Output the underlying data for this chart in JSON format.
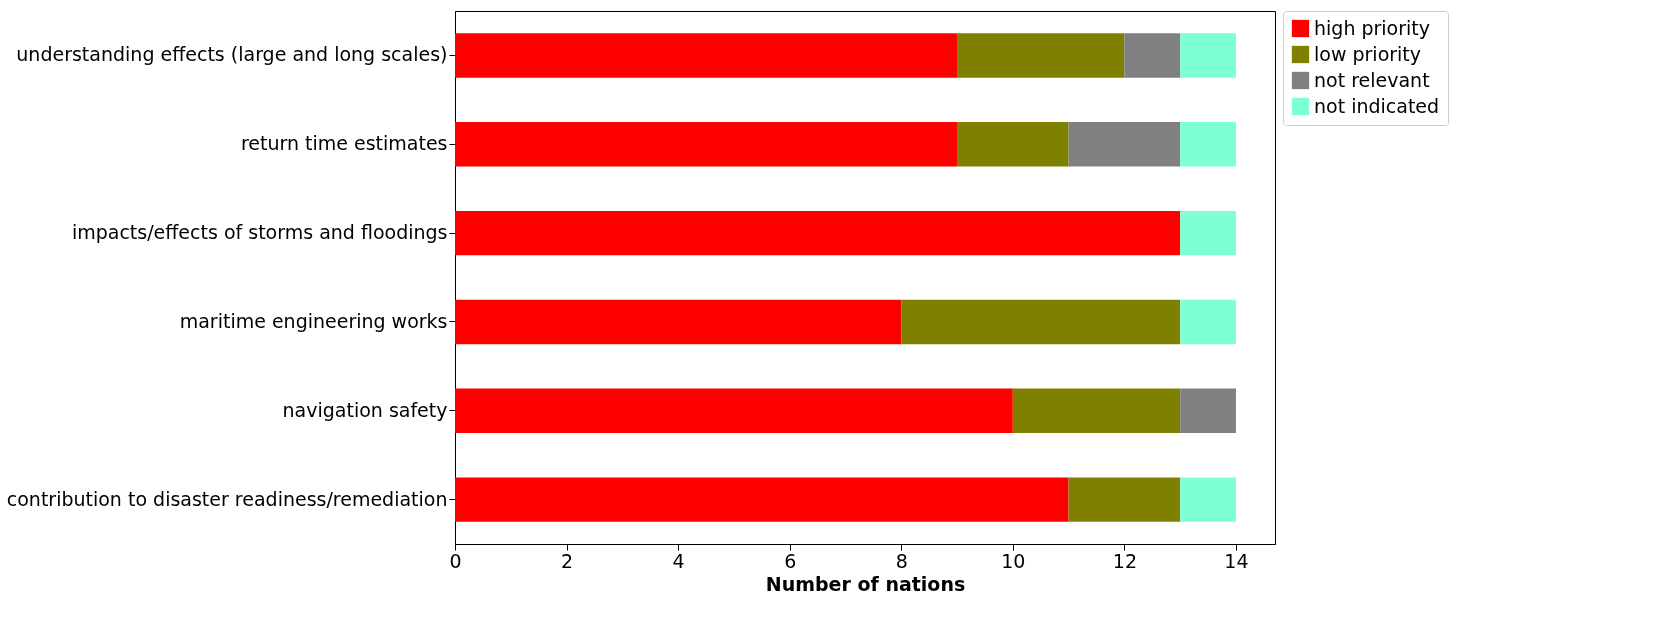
{
  "chart_data": {
    "type": "bar",
    "orientation": "horizontal",
    "stacked": true,
    "xlabel": "Number of nations",
    "categories": [
      "understanding effects (large and long scales)",
      "return time estimates",
      "impacts/effects of storms and floodings",
      "maritime engineering works",
      "navigation safety",
      "contribution to disaster readiness/remediation"
    ],
    "series": [
      {
        "name": "high priority",
        "color": "#ff0000",
        "values": [
          9,
          9,
          13,
          8,
          10,
          11
        ]
      },
      {
        "name": "low priority",
        "color": "#808000",
        "values": [
          3,
          2,
          0,
          5,
          3,
          2
        ]
      },
      {
        "name": "not relevant",
        "color": "#808080",
        "values": [
          1,
          2,
          0,
          0,
          1,
          0
        ]
      },
      {
        "name": "not indicated",
        "color": "#7fffd4",
        "values": [
          1,
          1,
          1,
          1,
          0,
          1
        ]
      }
    ],
    "xlim": [
      0,
      14.7
    ],
    "xticks": [
      0,
      2,
      4,
      6,
      8,
      10,
      12,
      14
    ],
    "grid": false,
    "legend": "top right"
  }
}
